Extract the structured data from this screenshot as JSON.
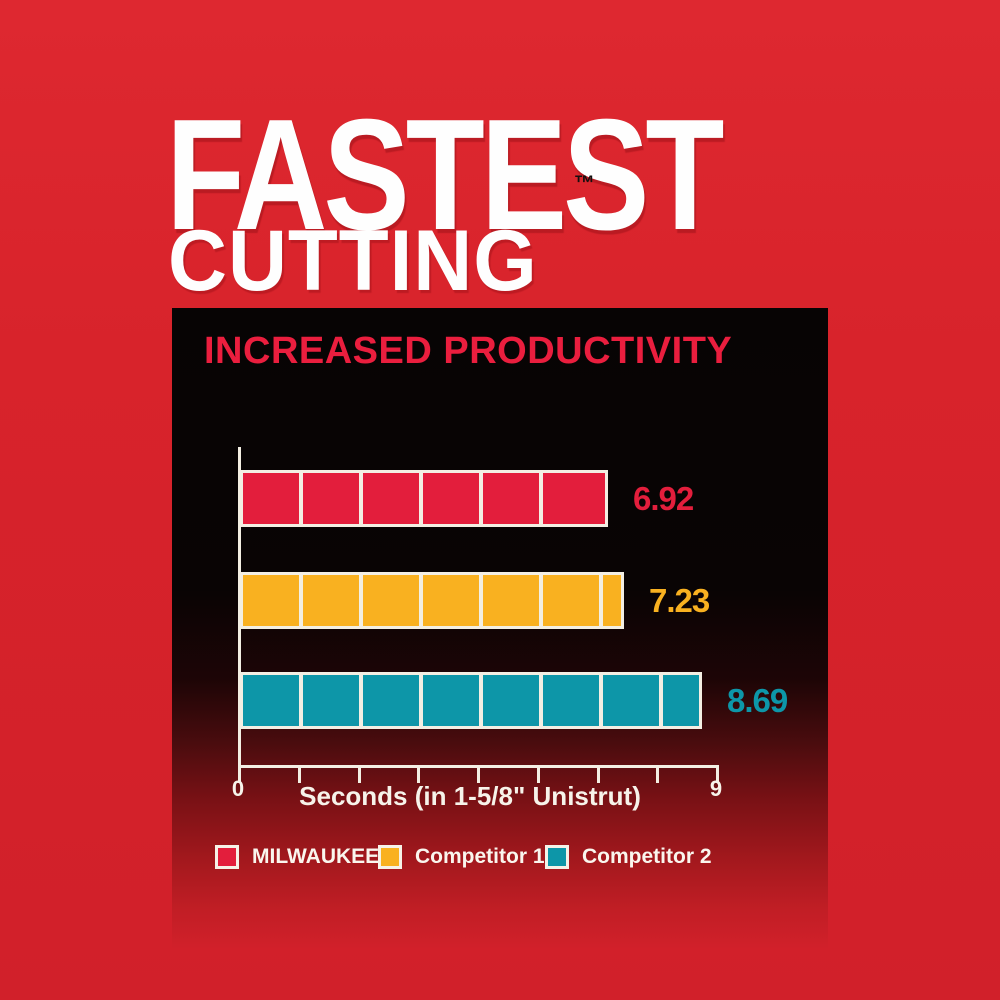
{
  "heading": {
    "line1": "FASTEST",
    "trademark": "™",
    "line2": "CUTTING"
  },
  "panel": {
    "title": "INCREASED PRODUCTIVITY"
  },
  "axis": {
    "min_label": "0",
    "max_label": "9",
    "label": "Seconds (in 1-5/8\" Unistrut)",
    "tick_count": 9
  },
  "legend": [
    {
      "label": "MILWAUKEE®",
      "color": "#e31e3c"
    },
    {
      "label": "Competitor 1",
      "color": "#f9b120"
    },
    {
      "label": "Competitor 2",
      "color": "#0d96a8"
    }
  ],
  "colors": {
    "background_red": "#d8232b",
    "panel_black": "#070404",
    "line_white": "#f3efe3",
    "title_red": "#ea1e3e"
  },
  "chart_data": {
    "type": "bar",
    "orientation": "horizontal",
    "title": "INCREASED PRODUCTIVITY",
    "categories": [
      "MILWAUKEE®",
      "Competitor 1",
      "Competitor 2"
    ],
    "values": [
      6.92,
      7.23,
      8.69
    ],
    "value_labels": [
      "6.92",
      "7.23",
      "8.69"
    ],
    "series_colors": [
      "#e31e3c",
      "#f9b120",
      "#0d96a8"
    ],
    "segments": [
      6,
      7,
      8
    ],
    "xlabel": "Seconds (in 1-5/8\" Unistrut)",
    "xlim": [
      0,
      9
    ],
    "x_tick_labels": [
      "0",
      "9"
    ],
    "grid": false,
    "legend_position": "bottom"
  }
}
